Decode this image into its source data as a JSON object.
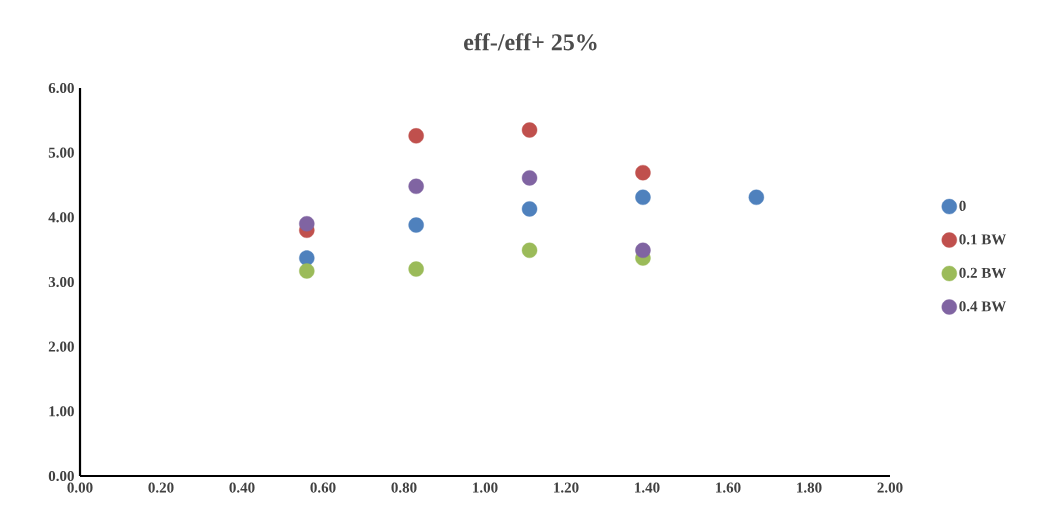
{
  "chart_data": {
    "type": "scatter",
    "title": "eff-/eff+ 25%",
    "x": [
      0.56,
      0.83,
      1.11,
      1.39,
      1.67
    ],
    "series": [
      {
        "name": "0",
        "color": "#4f81bd",
        "values": [
          3.37,
          3.88,
          4.13,
          4.31,
          4.31
        ]
      },
      {
        "name": "0.1 BW",
        "color": "#c0504d",
        "values": [
          3.8,
          5.26,
          5.35,
          4.69,
          null
        ]
      },
      {
        "name": "0.2 BW",
        "color": "#9bbb59",
        "values": [
          3.17,
          3.2,
          3.49,
          3.37,
          null
        ]
      },
      {
        "name": "0.4 BW",
        "color": "#8064a2",
        "values": [
          3.9,
          4.48,
          4.61,
          3.49,
          null
        ]
      }
    ],
    "xlim": [
      0,
      2
    ],
    "ylim": [
      0,
      6
    ],
    "xticks": [
      {
        "value": 0,
        "label": "0.00"
      },
      {
        "value": 0.2,
        "label": "0.20"
      },
      {
        "value": 0.4,
        "label": "0.40"
      },
      {
        "value": 0.6,
        "label": "0.60"
      },
      {
        "value": 0.8,
        "label": "0.80"
      },
      {
        "value": 1,
        "label": "1.00"
      },
      {
        "value": 1.2,
        "label": "1.20"
      },
      {
        "value": 1.4,
        "label": "1.40"
      },
      {
        "value": 1.6,
        "label": "1.60"
      },
      {
        "value": 1.8,
        "label": "1.80"
      },
      {
        "value": 2,
        "label": "2.00"
      }
    ],
    "yticks": [
      {
        "value": 0,
        "label": "0.00"
      },
      {
        "value": 1,
        "label": "1.00"
      },
      {
        "value": 2,
        "label": "2.00"
      },
      {
        "value": 3,
        "label": "3.00"
      },
      {
        "value": 4,
        "label": "4.00"
      },
      {
        "value": 5,
        "label": "5.00"
      },
      {
        "value": 6,
        "label": "6.00"
      }
    ],
    "legend": "right",
    "marker": "circle"
  }
}
